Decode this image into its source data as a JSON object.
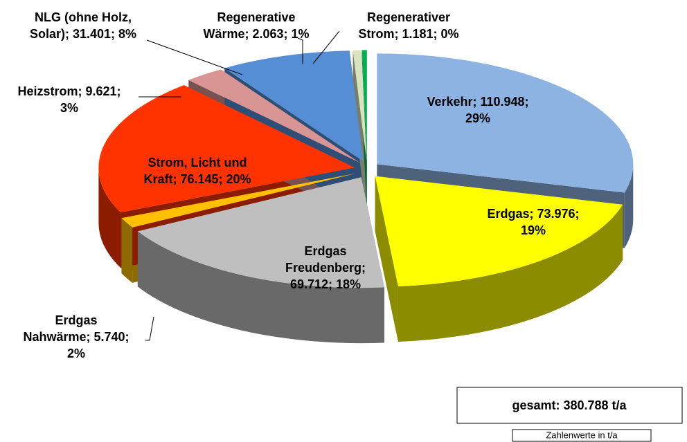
{
  "chart_data": {
    "type": "pie",
    "categories": [
      "Verkehr",
      "Erdgas",
      "Erdgas Freudenberg",
      "Erdgas Nahwärme",
      "Strom, Licht und Kraft",
      "Heizstrom",
      "NLG (ohne Holz, Solar)",
      "Regenerative Wärme",
      "Regenerativer Strom"
    ],
    "values": [
      110948,
      73976,
      69712,
      5740,
      76145,
      9621,
      31401,
      2063,
      1181
    ],
    "value_labels": [
      [
        "Verkehr; 110.948;",
        "29%"
      ],
      [
        "Erdgas; 73.976;",
        "19%"
      ],
      [
        "Erdgas",
        "Freudenberg;",
        "69.712; 18%"
      ],
      [
        "Erdgas",
        "Nahwärme; 5.740;",
        "2%"
      ],
      [
        "Strom, Licht und",
        "Kraft; 76.145; 20%"
      ],
      [
        "Heizstrom; 9.621;",
        "3%"
      ],
      [
        "NLG (ohne Holz,",
        "Solar); 31.401; 8%"
      ],
      [
        "Regenerative",
        "Wärme; 2.063; 1%"
      ],
      [
        "Regenerativer",
        "Strom; 1.181; 0%"
      ]
    ],
    "colors": [
      "#8db3e2",
      "#ffff00",
      "#bfbfbf",
      "#ffc000",
      "#ff3300",
      "#d99594",
      "#558ed5",
      "#d7e4bd",
      "#00b050"
    ],
    "total_label": "gesamt: 380.788 t/a",
    "note": "Zahlenwerte in t/a"
  }
}
